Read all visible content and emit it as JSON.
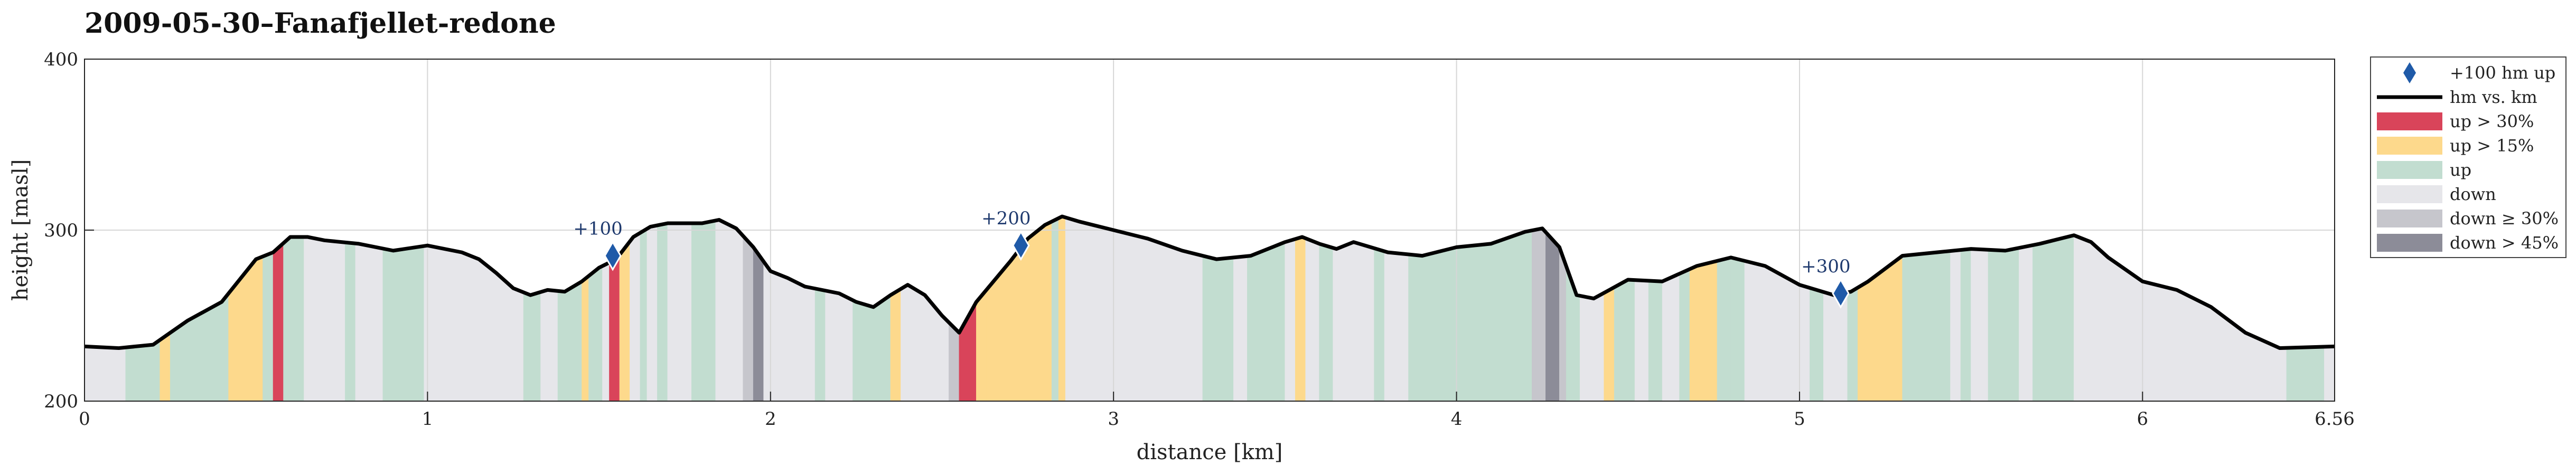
{
  "chart_data": {
    "type": "area",
    "title": "2009-05-30–Fanafjellet-redone",
    "xlabel": "distance [km]",
    "ylabel": "height [masl]",
    "xlim": [
      0,
      6.56
    ],
    "ylim": [
      200,
      400
    ],
    "xticks": [
      0,
      1,
      2,
      3,
      4,
      5,
      6,
      6.56
    ],
    "xtick_labels": [
      "0",
      "1",
      "2",
      "3",
      "4",
      "5",
      "6",
      "6.56"
    ],
    "yticks": [
      200,
      300,
      400
    ],
    "ytick_labels": [
      "200",
      "300",
      "400"
    ],
    "grid": true,
    "legend_position": "outside-right",
    "colors": {
      "line": "#000000",
      "marker": "#1f5aa8",
      "up30": "#d9445a",
      "up15": "#fdd98c",
      "up": "#c2ddd0",
      "down": "#e6e6ea",
      "down30": "#c6c6cc",
      "down45": "#8c8c98"
    },
    "legend": [
      {
        "key": "marker",
        "label": "+100 hm up"
      },
      {
        "key": "line",
        "label": "hm vs. km"
      },
      {
        "key": "up30",
        "label": "up > 30%"
      },
      {
        "key": "up15",
        "label": "up > 15%"
      },
      {
        "key": "up",
        "label": "up"
      },
      {
        "key": "down",
        "label": "down"
      },
      {
        "key": "down30",
        "label": "down ≥ 30%"
      },
      {
        "key": "down45",
        "label": "down > 45%"
      }
    ],
    "profile": {
      "x": [
        0,
        0.1,
        0.2,
        0.25,
        0.3,
        0.4,
        0.5,
        0.55,
        0.6,
        0.65,
        0.7,
        0.8,
        0.9,
        1.0,
        1.1,
        1.15,
        1.2,
        1.25,
        1.3,
        1.35,
        1.4,
        1.45,
        1.5,
        1.55,
        1.6,
        1.65,
        1.7,
        1.8,
        1.85,
        1.9,
        1.95,
        2.0,
        2.05,
        2.1,
        2.2,
        2.25,
        2.3,
        2.35,
        2.4,
        2.45,
        2.5,
        2.55,
        2.6,
        2.65,
        2.7,
        2.75,
        2.8,
        2.85,
        2.9,
        3.0,
        3.1,
        3.2,
        3.3,
        3.4,
        3.5,
        3.55,
        3.6,
        3.65,
        3.7,
        3.8,
        3.9,
        4.0,
        4.1,
        4.2,
        4.25,
        4.3,
        4.35,
        4.4,
        4.5,
        4.6,
        4.7,
        4.8,
        4.9,
        5.0,
        5.1,
        5.15,
        5.2,
        5.3,
        5.4,
        5.5,
        5.6,
        5.7,
        5.8,
        5.85,
        5.9,
        6.0,
        6.1,
        6.2,
        6.3,
        6.4,
        6.56
      ],
      "y": [
        232,
        231,
        233,
        240,
        247,
        258,
        283,
        287,
        296,
        296,
        294,
        292,
        288,
        291,
        287,
        283,
        275,
        266,
        262,
        265,
        264,
        270,
        278,
        283,
        296,
        302,
        304,
        304,
        306,
        301,
        290,
        276,
        272,
        267,
        263,
        258,
        255,
        262,
        268,
        262,
        250,
        240,
        258,
        270,
        282,
        295,
        303,
        308,
        305,
        300,
        295,
        288,
        283,
        285,
        293,
        296,
        292,
        289,
        293,
        287,
        285,
        290,
        292,
        299,
        301,
        290,
        262,
        260,
        271,
        270,
        279,
        284,
        279,
        268,
        262,
        264,
        270,
        285,
        287,
        289,
        288,
        292,
        297,
        293,
        284,
        270,
        265,
        255,
        240,
        231,
        232
      ]
    },
    "segments": [
      {
        "start": 0.0,
        "end": 0.12,
        "type": "down"
      },
      {
        "start": 0.12,
        "end": 0.22,
        "type": "up"
      },
      {
        "start": 0.22,
        "end": 0.25,
        "type": "up15"
      },
      {
        "start": 0.25,
        "end": 0.42,
        "type": "up"
      },
      {
        "start": 0.42,
        "end": 0.52,
        "type": "up15"
      },
      {
        "start": 0.52,
        "end": 0.55,
        "type": "up"
      },
      {
        "start": 0.55,
        "end": 0.58,
        "type": "up30"
      },
      {
        "start": 0.58,
        "end": 0.64,
        "type": "up"
      },
      {
        "start": 0.64,
        "end": 0.76,
        "type": "down"
      },
      {
        "start": 0.76,
        "end": 0.79,
        "type": "up"
      },
      {
        "start": 0.79,
        "end": 0.87,
        "type": "down"
      },
      {
        "start": 0.87,
        "end": 0.99,
        "type": "up"
      },
      {
        "start": 0.99,
        "end": 1.28,
        "type": "down"
      },
      {
        "start": 1.28,
        "end": 1.33,
        "type": "up"
      },
      {
        "start": 1.33,
        "end": 1.38,
        "type": "down"
      },
      {
        "start": 1.38,
        "end": 1.45,
        "type": "up"
      },
      {
        "start": 1.45,
        "end": 1.47,
        "type": "up15"
      },
      {
        "start": 1.47,
        "end": 1.51,
        "type": "up"
      },
      {
        "start": 1.51,
        "end": 1.53,
        "type": "down"
      },
      {
        "start": 1.53,
        "end": 1.56,
        "type": "up30"
      },
      {
        "start": 1.56,
        "end": 1.59,
        "type": "up15"
      },
      {
        "start": 1.59,
        "end": 1.62,
        "type": "down"
      },
      {
        "start": 1.62,
        "end": 1.64,
        "type": "up"
      },
      {
        "start": 1.64,
        "end": 1.67,
        "type": "down"
      },
      {
        "start": 1.67,
        "end": 1.7,
        "type": "up"
      },
      {
        "start": 1.7,
        "end": 1.77,
        "type": "down"
      },
      {
        "start": 1.77,
        "end": 1.84,
        "type": "up"
      },
      {
        "start": 1.84,
        "end": 1.92,
        "type": "down"
      },
      {
        "start": 1.92,
        "end": 1.95,
        "type": "down30"
      },
      {
        "start": 1.95,
        "end": 1.98,
        "type": "down45"
      },
      {
        "start": 1.98,
        "end": 2.13,
        "type": "down"
      },
      {
        "start": 2.13,
        "end": 2.16,
        "type": "up"
      },
      {
        "start": 2.16,
        "end": 2.24,
        "type": "down"
      },
      {
        "start": 2.24,
        "end": 2.35,
        "type": "up"
      },
      {
        "start": 2.35,
        "end": 2.38,
        "type": "up15"
      },
      {
        "start": 2.38,
        "end": 2.52,
        "type": "down"
      },
      {
        "start": 2.52,
        "end": 2.55,
        "type": "down30"
      },
      {
        "start": 2.55,
        "end": 2.6,
        "type": "up30"
      },
      {
        "start": 2.6,
        "end": 2.63,
        "type": "up15"
      },
      {
        "start": 2.63,
        "end": 2.82,
        "type": "up15"
      },
      {
        "start": 2.82,
        "end": 2.84,
        "type": "up"
      },
      {
        "start": 2.84,
        "end": 2.86,
        "type": "up15"
      },
      {
        "start": 2.86,
        "end": 3.26,
        "type": "down"
      },
      {
        "start": 3.26,
        "end": 3.35,
        "type": "up"
      },
      {
        "start": 3.35,
        "end": 3.39,
        "type": "down"
      },
      {
        "start": 3.39,
        "end": 3.5,
        "type": "up"
      },
      {
        "start": 3.5,
        "end": 3.53,
        "type": "down"
      },
      {
        "start": 3.53,
        "end": 3.56,
        "type": "up15"
      },
      {
        "start": 3.56,
        "end": 3.6,
        "type": "down"
      },
      {
        "start": 3.6,
        "end": 3.64,
        "type": "up"
      },
      {
        "start": 3.64,
        "end": 3.76,
        "type": "down"
      },
      {
        "start": 3.76,
        "end": 3.79,
        "type": "up"
      },
      {
        "start": 3.79,
        "end": 3.86,
        "type": "down"
      },
      {
        "start": 3.86,
        "end": 4.22,
        "type": "up"
      },
      {
        "start": 4.22,
        "end": 4.26,
        "type": "down30"
      },
      {
        "start": 4.26,
        "end": 4.3,
        "type": "down45"
      },
      {
        "start": 4.3,
        "end": 4.32,
        "type": "down30"
      },
      {
        "start": 4.32,
        "end": 4.36,
        "type": "up"
      },
      {
        "start": 4.36,
        "end": 4.43,
        "type": "down"
      },
      {
        "start": 4.43,
        "end": 4.46,
        "type": "up15"
      },
      {
        "start": 4.46,
        "end": 4.52,
        "type": "up"
      },
      {
        "start": 4.52,
        "end": 4.56,
        "type": "down"
      },
      {
        "start": 4.56,
        "end": 4.6,
        "type": "up"
      },
      {
        "start": 4.6,
        "end": 4.65,
        "type": "down"
      },
      {
        "start": 4.65,
        "end": 4.68,
        "type": "up"
      },
      {
        "start": 4.68,
        "end": 4.72,
        "type": "up15"
      },
      {
        "start": 4.72,
        "end": 4.76,
        "type": "up15"
      },
      {
        "start": 4.76,
        "end": 4.8,
        "type": "up"
      },
      {
        "start": 4.8,
        "end": 4.84,
        "type": "up"
      },
      {
        "start": 4.84,
        "end": 5.03,
        "type": "down"
      },
      {
        "start": 5.03,
        "end": 5.07,
        "type": "up"
      },
      {
        "start": 5.07,
        "end": 5.14,
        "type": "down"
      },
      {
        "start": 5.14,
        "end": 5.17,
        "type": "up"
      },
      {
        "start": 5.17,
        "end": 5.3,
        "type": "up15"
      },
      {
        "start": 5.3,
        "end": 5.44,
        "type": "up"
      },
      {
        "start": 5.44,
        "end": 5.47,
        "type": "down"
      },
      {
        "start": 5.47,
        "end": 5.5,
        "type": "up"
      },
      {
        "start": 5.5,
        "end": 5.55,
        "type": "down"
      },
      {
        "start": 5.55,
        "end": 5.64,
        "type": "up"
      },
      {
        "start": 5.64,
        "end": 5.68,
        "type": "down"
      },
      {
        "start": 5.68,
        "end": 5.8,
        "type": "up"
      },
      {
        "start": 5.8,
        "end": 6.42,
        "type": "down"
      },
      {
        "start": 6.42,
        "end": 6.53,
        "type": "up"
      },
      {
        "start": 6.53,
        "end": 6.56,
        "type": "down"
      }
    ],
    "markers": [
      {
        "x": 1.54,
        "y": 285,
        "label": "+100"
      },
      {
        "x": 2.73,
        "y": 291,
        "label": "+200"
      },
      {
        "x": 5.12,
        "y": 263,
        "label": "+300"
      }
    ]
  }
}
